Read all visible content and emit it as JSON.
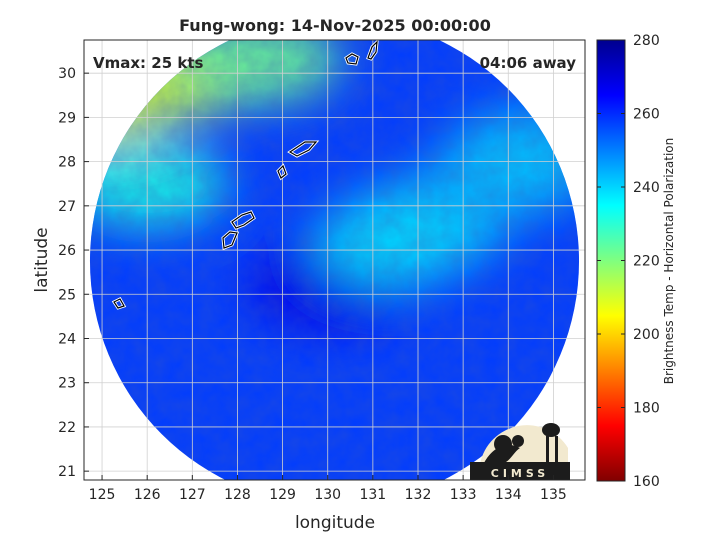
{
  "chart_data": {
    "type": "heatmap",
    "title": "Fung-wong: 14-Nov-2025 00:00:00",
    "xlabel": "longitude",
    "ylabel": "latitude",
    "xlim": [
      124.6,
      135.7
    ],
    "ylim": [
      20.8,
      30.75
    ],
    "xticks": [
      125,
      126,
      127,
      128,
      129,
      130,
      131,
      132,
      133,
      134,
      135
    ],
    "yticks": [
      21,
      22,
      23,
      24,
      25,
      26,
      27,
      28,
      29,
      30
    ],
    "grid": true,
    "annotations": {
      "vmax": "Vmax: 25 kts",
      "distance": "04:06 away"
    },
    "colorbar": {
      "label": "Brightness Temp - Horizontal Polarization",
      "min": 160,
      "max": 280,
      "ticks": [
        160,
        180,
        200,
        220,
        240,
        260,
        280
      ],
      "colormap": "jet"
    },
    "swath": {
      "center_lon": 130.15,
      "center_lat": 25.75,
      "radius_deg": 5.5
    },
    "field_features": [
      {
        "lon": 125.0,
        "lat": 29.5,
        "value": 205
      },
      {
        "lon": 126.5,
        "lat": 29.9,
        "value": 212
      },
      {
        "lon": 128.5,
        "lat": 30.3,
        "value": 222
      },
      {
        "lon": 126.0,
        "lat": 27.5,
        "value": 232
      },
      {
        "lon": 130.0,
        "lat": 25.2,
        "value": 268
      },
      {
        "lon": 131.5,
        "lat": 26.2,
        "value": 238
      },
      {
        "lon": 132.2,
        "lat": 26.6,
        "value": 240
      },
      {
        "lon": 133.8,
        "lat": 27.6,
        "value": 245
      },
      {
        "lon": 134.5,
        "lat": 28.2,
        "value": 242
      }
    ],
    "logo": "CIMSS"
  }
}
